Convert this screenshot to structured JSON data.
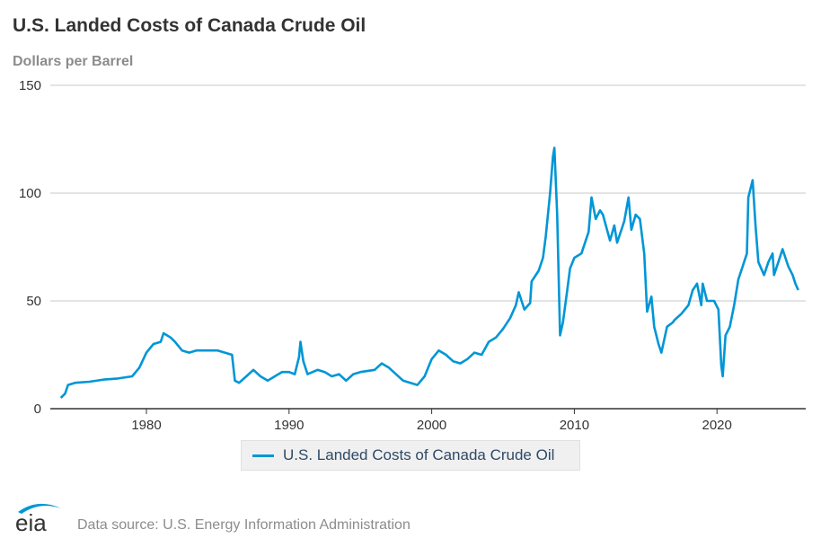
{
  "chart_data": {
    "type": "line",
    "title": "U.S. Landed Costs of Canada Crude Oil",
    "ylabel": "Dollars per Barrel",
    "xlabel": "",
    "ylim": [
      0,
      150
    ],
    "xlim": [
      1973.7,
      1976.0
    ],
    "yticks": [
      "0",
      "50",
      "100",
      "150"
    ],
    "xticks": [
      "1980",
      "1990",
      "2000",
      "2010",
      "2020"
    ],
    "grid": true,
    "legend_position": "bottom",
    "color": "#0096d6",
    "series": [
      {
        "name": "U.S. Landed Costs of Canada Crude Oil",
        "x": [
          1974.0,
          1974.3,
          1974.5,
          1975,
          1976,
          1977,
          1978,
          1979,
          1979.5,
          1980,
          1980.5,
          1981,
          1981.2,
          1981.7,
          1982,
          1982.5,
          1983,
          1983.5,
          1984,
          1985,
          1985.5,
          1986,
          1986.2,
          1986.5,
          1987,
          1987.5,
          1988,
          1988.5,
          1989,
          1989.5,
          1990,
          1990.4,
          1990.7,
          1990.8,
          1991,
          1991.3,
          1992,
          1992.5,
          1993,
          1993.5,
          1994,
          1994.5,
          1995,
          1996,
          1996.5,
          1997,
          1998,
          1998.5,
          1999,
          1999.5,
          2000,
          2000.5,
          2001,
          2001.5,
          2002,
          2002.5,
          2003,
          2003.5,
          2004,
          2004.5,
          2005,
          2005.5,
          2005.9,
          2006.1,
          2006.5,
          2006.9,
          2007,
          2007.5,
          2007.8,
          2008,
          2008.3,
          2008.5,
          2008.6,
          2008.8,
          2009,
          2009.2,
          2009.5,
          2009.7,
          2010,
          2010.5,
          2011,
          2011.2,
          2011.5,
          2011.8,
          2012,
          2012.5,
          2012.8,
          2013,
          2013.5,
          2013.8,
          2014,
          2014.3,
          2014.6,
          2014.9,
          2015.1,
          2015.4,
          2015.6,
          2015.9,
          2016.1,
          2016.5,
          2016.9,
          2017,
          2017.5,
          2018,
          2018.3,
          2018.6,
          2018.9,
          2019,
          2019.3,
          2019.8,
          2020.1,
          2020.3,
          2020.4,
          2020.6,
          2020.9,
          2021.2,
          2021.5,
          2021.8,
          2022.1,
          2022.2,
          2022.5,
          2022.7,
          2022.9,
          2023.3,
          2023.6,
          2023.9,
          2024,
          2024.3,
          2024.6,
          2025,
          2025.3,
          2025.5,
          2025.7
        ],
        "y": [
          5,
          7,
          11,
          12,
          12.5,
          13.5,
          14,
          15,
          19,
          26,
          30,
          31,
          35,
          33,
          31,
          27,
          26,
          27,
          27,
          27,
          26,
          25,
          13,
          12,
          15,
          18,
          15,
          13,
          15,
          17,
          17,
          16,
          24,
          31,
          22,
          16,
          18,
          17,
          15,
          16,
          13,
          16,
          17,
          18,
          21,
          19,
          13,
          12,
          11,
          15,
          23,
          27,
          25,
          22,
          21,
          23,
          26,
          25,
          31,
          33,
          37,
          42,
          48,
          54,
          46,
          49,
          59,
          64,
          70,
          80,
          100,
          117,
          121,
          90,
          34,
          40,
          55,
          65,
          70,
          72,
          82,
          98,
          88,
          92,
          90,
          78,
          85,
          77,
          87,
          98,
          83,
          90,
          88,
          72,
          45,
          52,
          38,
          30,
          26,
          38,
          40,
          41,
          44,
          48,
          55,
          58,
          48,
          58,
          50,
          50,
          46,
          20,
          15,
          34,
          38,
          48,
          60,
          66,
          72,
          98,
          106,
          85,
          68,
          62,
          68,
          72,
          62,
          68,
          74,
          66,
          62,
          58,
          55
        ]
      }
    ]
  },
  "footer": {
    "source": "Data source: U.S. Energy Information Administration",
    "logo_text": "eia"
  }
}
